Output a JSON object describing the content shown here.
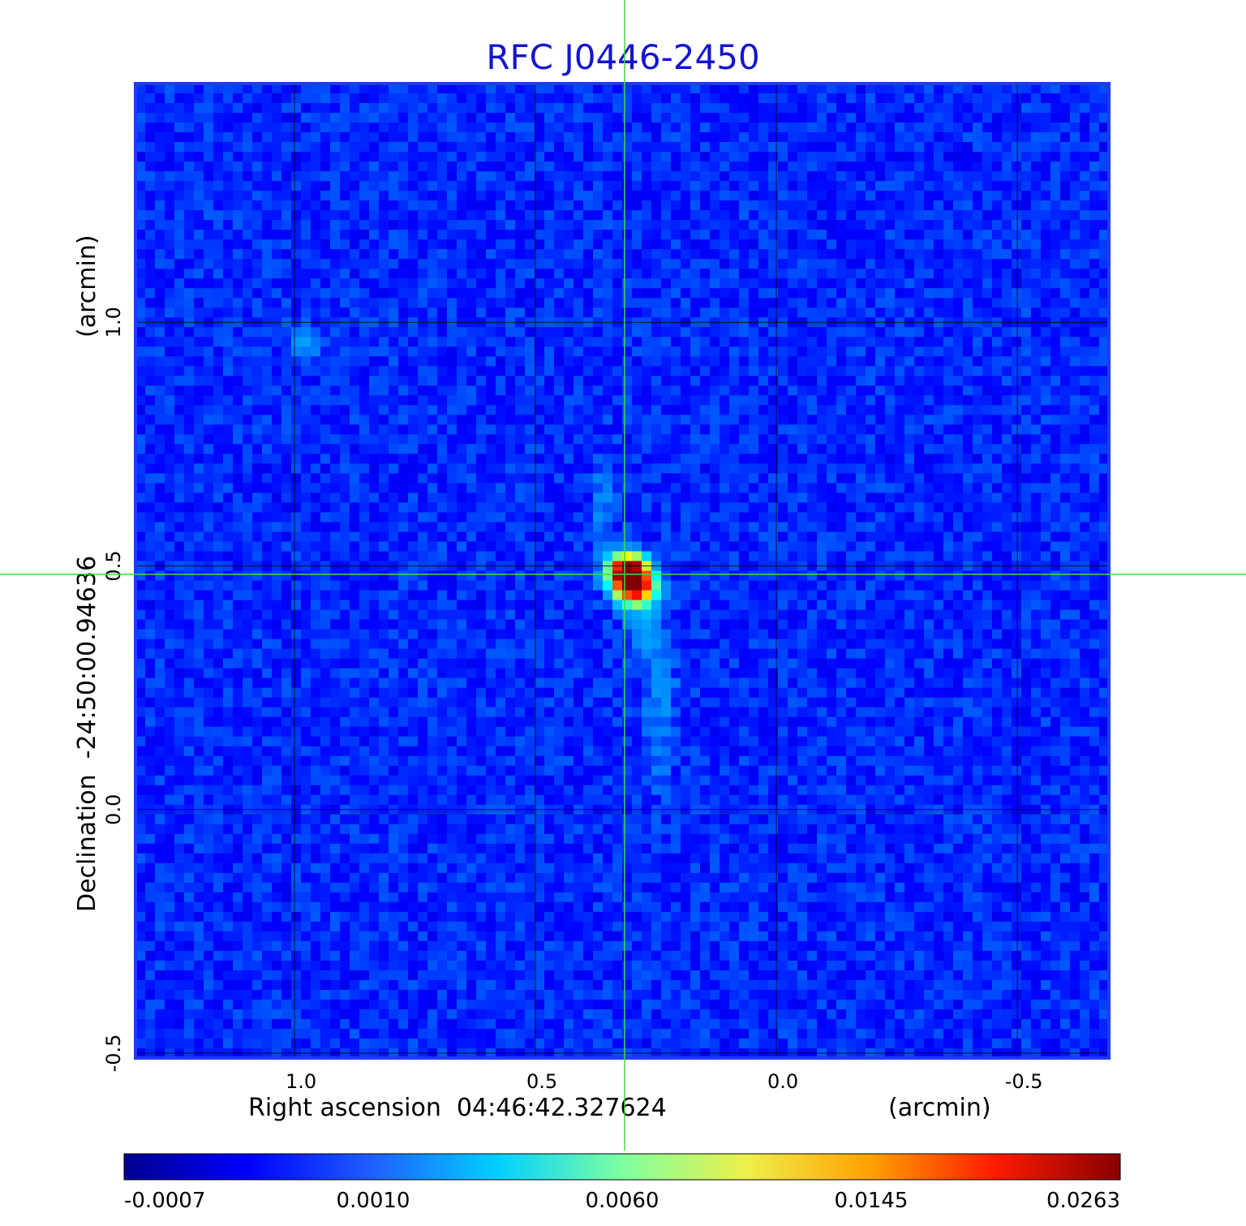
{
  "chart_data": {
    "type": "heatmap",
    "title": "RFC J0446-2450",
    "xlabel": "Right ascension  04:46:42.327624",
    "xunit": "(arcmin)",
    "ylabel": "Declination  -24:50:00.94636",
    "yunit": "(arcmin)",
    "xlim": [
      1.33,
      -0.69
    ],
    "ylim": [
      -0.51,
      1.49
    ],
    "x_ticks": [
      {
        "value": 1.0,
        "label": "1.0"
      },
      {
        "value": 0.5,
        "label": "0.5"
      },
      {
        "value": 0.0,
        "label": "0.0"
      },
      {
        "value": -0.5,
        "label": "-0.5"
      }
    ],
    "y_ticks": [
      {
        "value": -0.5,
        "label": "-0.5"
      },
      {
        "value": 0.0,
        "label": "0.0"
      },
      {
        "value": 0.5,
        "label": "0.5"
      },
      {
        "value": 1.0,
        "label": "1.0"
      }
    ],
    "grid": true,
    "crosshair": {
      "x": 0.315,
      "y": 0.483
    },
    "colormap": "jet",
    "colorbar": {
      "position": "bottom",
      "ticks": [
        "-0.0007",
        "0.0010",
        "0.0060",
        "0.0145",
        "0.0263"
      ],
      "min": -0.0007,
      "max": 0.0263
    },
    "background_level": 0.0004,
    "peak_value": 0.0263,
    "components": [
      {
        "x": 0.31,
        "y": 0.49,
        "value": 0.0263,
        "sx": 0.022,
        "sy": 0.02
      },
      {
        "x": 0.3,
        "y": 0.47,
        "value": 0.0245,
        "sx": 0.02,
        "sy": 0.02
      },
      {
        "x": 0.29,
        "y": 0.455,
        "value": 0.014,
        "sx": 0.025,
        "sy": 0.022
      },
      {
        "x": 0.275,
        "y": 0.39,
        "value": 0.0016,
        "sx": 0.02,
        "sy": 0.06
      },
      {
        "x": 0.24,
        "y": 0.22,
        "value": 0.0012,
        "sx": 0.02,
        "sy": 0.1
      },
      {
        "x": 0.36,
        "y": 0.62,
        "value": 0.0011,
        "sx": 0.015,
        "sy": 0.07
      },
      {
        "x": 0.98,
        "y": 0.955,
        "value": 0.0014,
        "sx": 0.025,
        "sy": 0.025
      }
    ]
  }
}
